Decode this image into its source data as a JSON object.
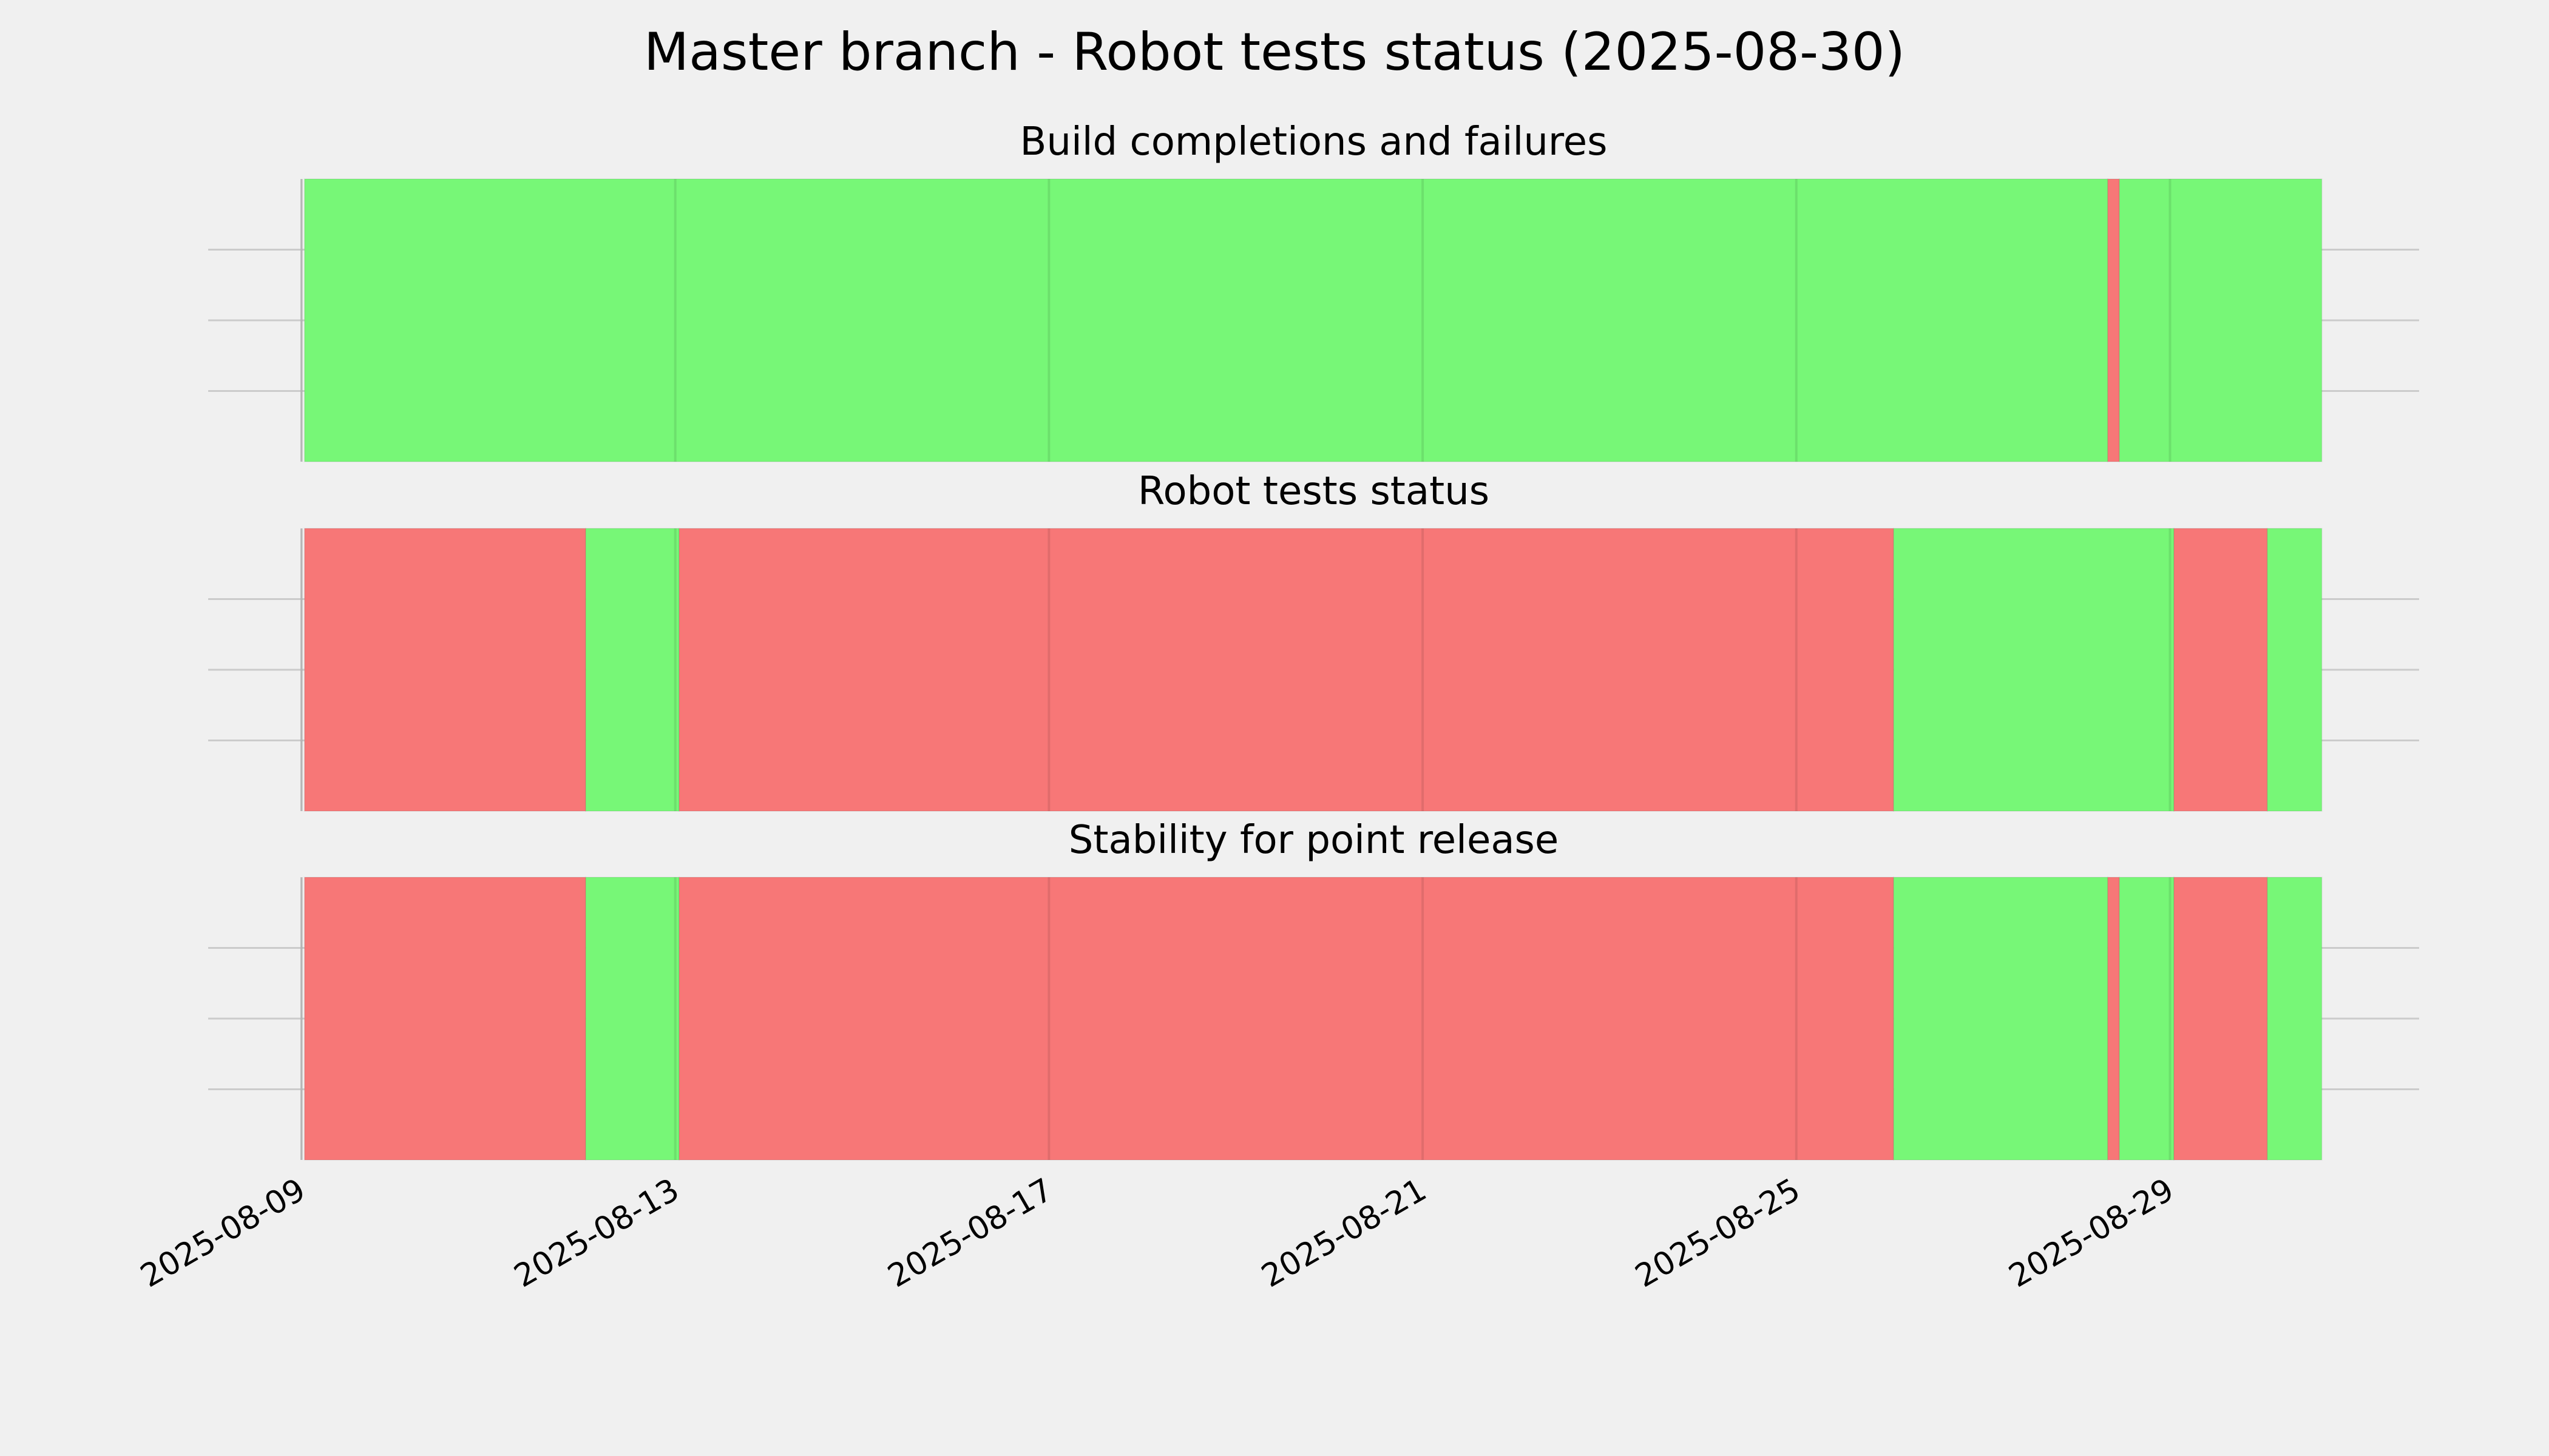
{
  "chart_data": {
    "type": "timeline",
    "title": "Master branch - Robot tests status (2025-08-30)",
    "xlim": [
      "2025-08-08T00:00",
      "2025-08-31T16:00"
    ],
    "xticks": [
      "2025-08-09",
      "2025-08-13",
      "2025-08-17",
      "2025-08-21",
      "2025-08-25",
      "2025-08-29"
    ],
    "grid": true,
    "panels": [
      {
        "title": "Build completions and failures",
        "segments": [
          {
            "start": "2025-08-09T00:45",
            "end": "2025-08-28T08:00",
            "color": "#77f777"
          },
          {
            "start": "2025-08-28T08:00",
            "end": "2025-08-28T11:00",
            "color": "#f77777"
          },
          {
            "start": "2025-08-28T11:00",
            "end": "2025-08-30T15:00",
            "color": "#77f777"
          }
        ]
      },
      {
        "title": "Robot tests status",
        "segments": [
          {
            "start": "2025-08-09T00:45",
            "end": "2025-08-12T01:00",
            "color": "#f77777"
          },
          {
            "start": "2025-08-12T01:00",
            "end": "2025-08-13T01:00",
            "color": "#77f777"
          },
          {
            "start": "2025-08-13T01:00",
            "end": "2025-08-26T01:00",
            "color": "#f77777"
          },
          {
            "start": "2025-08-26T01:00",
            "end": "2025-08-29T01:00",
            "color": "#77f777"
          },
          {
            "start": "2025-08-29T01:00",
            "end": "2025-08-30T01:00",
            "color": "#f77777"
          },
          {
            "start": "2025-08-30T01:00",
            "end": "2025-08-30T15:00",
            "color": "#77f777"
          }
        ]
      },
      {
        "title": "Stability for point release",
        "segments": [
          {
            "start": "2025-08-09T00:45",
            "end": "2025-08-12T01:00",
            "color": "#f77777"
          },
          {
            "start": "2025-08-12T01:00",
            "end": "2025-08-13T01:00",
            "color": "#77f777"
          },
          {
            "start": "2025-08-13T01:00",
            "end": "2025-08-26T01:00",
            "color": "#f77777"
          },
          {
            "start": "2025-08-26T01:00",
            "end": "2025-08-28T08:00",
            "color": "#77f777"
          },
          {
            "start": "2025-08-28T08:00",
            "end": "2025-08-28T11:00",
            "color": "#f77777"
          },
          {
            "start": "2025-08-28T11:00",
            "end": "2025-08-29T01:00",
            "color": "#77f777"
          },
          {
            "start": "2025-08-29T01:00",
            "end": "2025-08-30T01:00",
            "color": "#f77777"
          },
          {
            "start": "2025-08-30T01:00",
            "end": "2025-08-30T15:00",
            "color": "#77f777"
          }
        ]
      }
    ]
  }
}
